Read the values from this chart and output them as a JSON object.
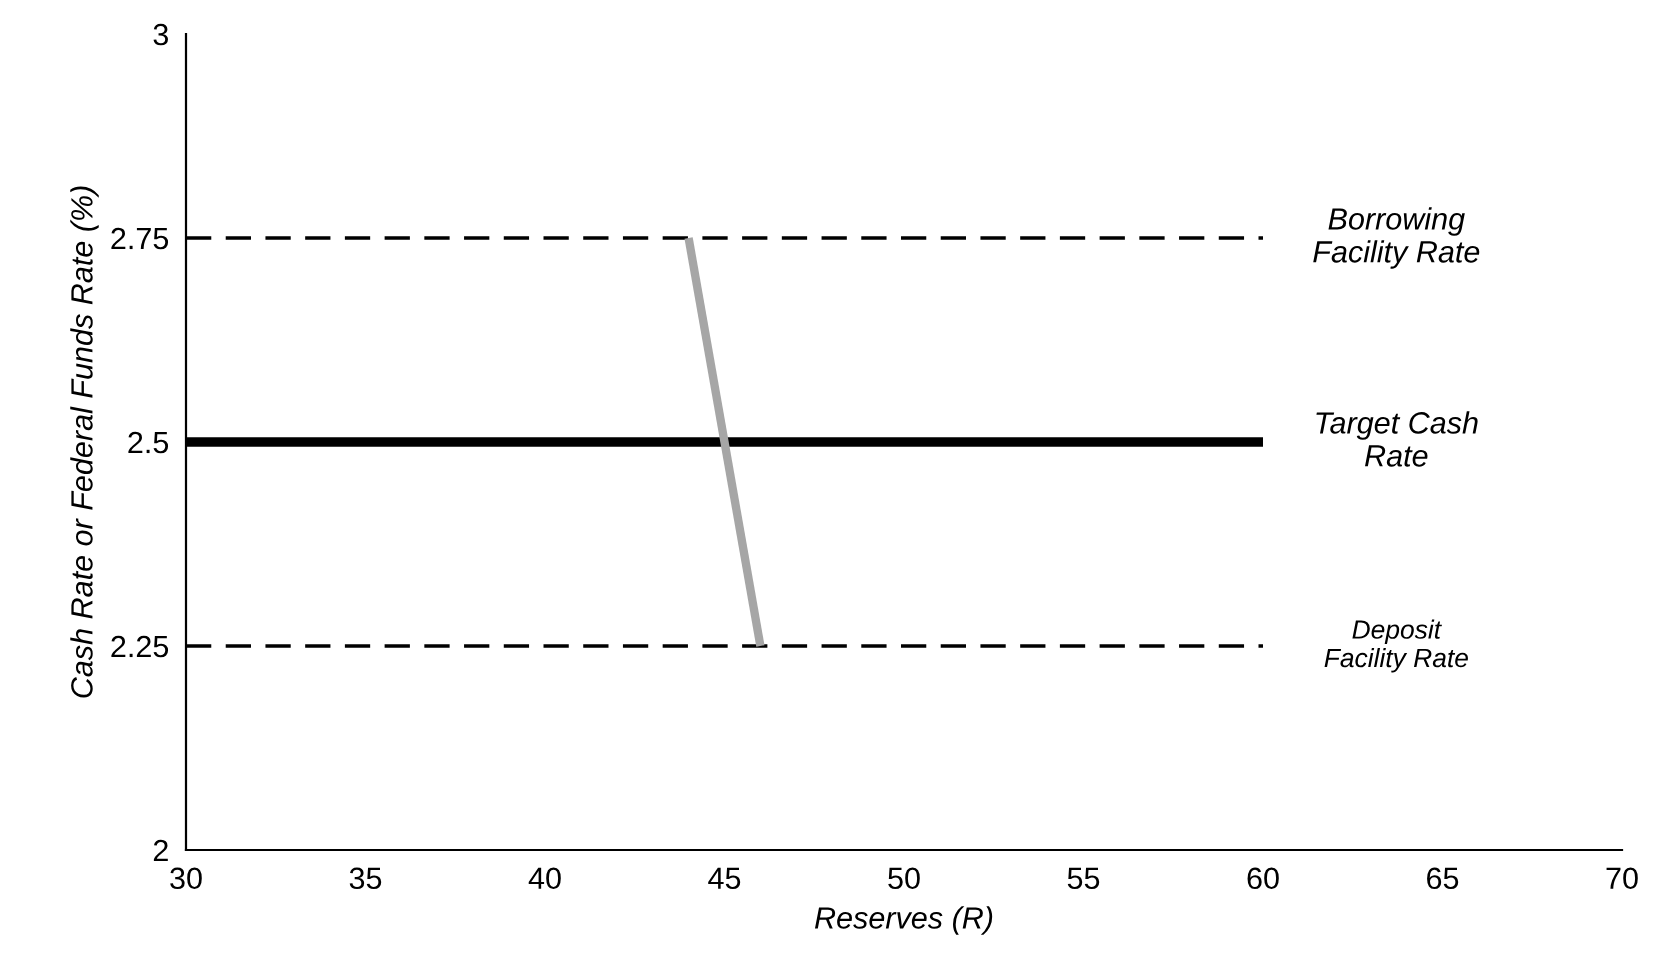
{
  "chart_data": {
    "type": "line",
    "xlabel": "Reserves (R)",
    "ylabel": "Cash Rate or Federal Funds Rate (%)",
    "series": [
      {
        "name": "Borrowing\nFacility Rate",
        "color": "#000000",
        "line_style": "dashed",
        "x": [
          30,
          60
        ],
        "values": [
          2.75,
          2.75
        ]
      },
      {
        "name": "Target Cash\nRate",
        "color": "#000000",
        "line_style": "solid",
        "x": [
          30,
          60
        ],
        "values": [
          2.5,
          2.5
        ]
      },
      {
        "name": "Deposit\nFacility Rate",
        "color": "#000000",
        "line_style": "dashed",
        "x": [
          30,
          60
        ],
        "values": [
          2.25,
          2.25
        ]
      },
      {
        "color": "#a6a6a6",
        "line_style": "solid",
        "x": [
          44,
          46
        ],
        "values": [
          2.75,
          2.25
        ]
      }
    ],
    "xlim": [
      30,
      70
    ],
    "xticks": [
      30,
      35,
      40,
      45,
      50,
      55,
      60,
      65,
      70
    ],
    "ylim": [
      2,
      3
    ],
    "yticks": [
      2,
      2.25,
      2.5,
      2.75,
      3
    ],
    "grid": false,
    "legend": false,
    "marker": "none"
  }
}
